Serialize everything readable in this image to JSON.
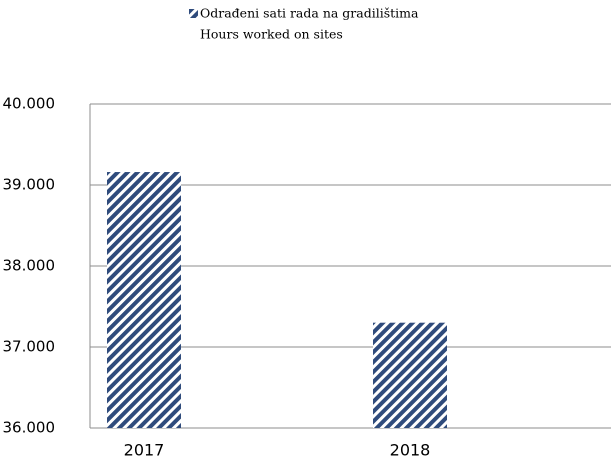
{
  "chart_data": {
    "type": "bar",
    "legend": [
      "Odrađeni sati rada na gradilištima",
      "Hours worked on sites"
    ],
    "categories": [
      "2017",
      "2018"
    ],
    "series": [
      {
        "name": "Odrađeni sati rada na gradilištima",
        "color": "#2f4b7c",
        "values": [
          39160,
          37300
        ]
      }
    ],
    "ylim": [
      36000,
      40000
    ],
    "yticks": [
      {
        "value": 36000,
        "label": "36.000"
      },
      {
        "value": 37000,
        "label": "37.000"
      },
      {
        "value": 38000,
        "label": "38.000"
      },
      {
        "value": 39000,
        "label": "39.000"
      },
      {
        "value": 40000,
        "label": "40.000"
      }
    ],
    "grid": true
  }
}
